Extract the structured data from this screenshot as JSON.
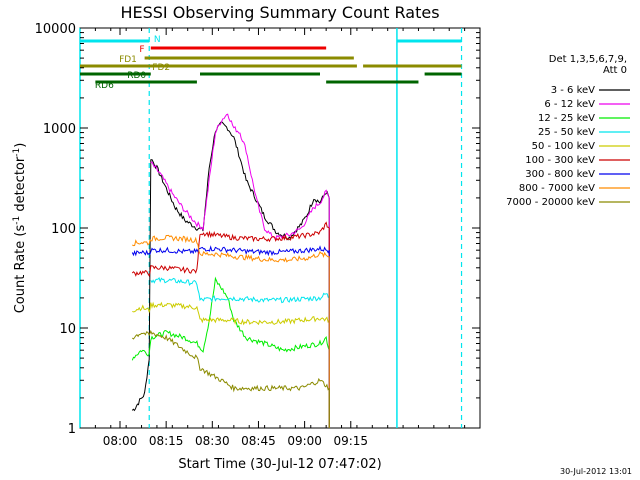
{
  "chart_data": {
    "type": "line",
    "title": "HESSI Observing Summary Count Rates",
    "xlabel": "Start Time (30-Jul-12 07:47:02)",
    "ylabel_main": "Count Rate (s",
    "ylabel_sup1": "-1",
    "ylabel_mid": " detector",
    "ylabel_sup2": "-1",
    "ylabel_end": ")",
    "y_scale": "log",
    "ylim": [
      1,
      10000
    ],
    "xlim_min": [
      0,
      130
    ],
    "x_ticks": [
      {
        "label": "08:00",
        "min": 13
      },
      {
        "label": "08:15",
        "min": 28
      },
      {
        "label": "08:30",
        "min": 43
      },
      {
        "label": "08:45",
        "min": 58
      },
      {
        "label": "09:00",
        "min": 73
      },
      {
        "label": "09:15",
        "min": 88
      }
    ],
    "y_ticks": [
      {
        "label": "10000",
        "value": 10000
      },
      {
        "label": "1000",
        "value": 1000
      },
      {
        "label": "100",
        "value": 100
      },
      {
        "label": "10",
        "value": 10
      },
      {
        "label": "1",
        "value": 1
      }
    ],
    "legend_header": [
      "Det 1,3,5,6,7,9,",
      "Att 0"
    ],
    "legend_position": "right",
    "timestamp": "30-Jul-2012 13:01",
    "vertical_markers": {
      "cyan_solid_min": [
        0,
        103
      ],
      "cyan_dashed_min": [
        22.5,
        124
      ]
    },
    "flag_bars": [
      {
        "label": "N",
        "color": "#00e5ee",
        "level": 0,
        "segments": [
          [
            0,
            22.5
          ],
          [
            103,
            124
          ]
        ]
      },
      {
        "label": "F",
        "color": "#ee0000",
        "level": 1,
        "segments": [
          [
            23,
            80
          ]
        ]
      },
      {
        "label": "FD1",
        "color": "#8b8b00",
        "level": 2,
        "segments": [
          [
            21,
            89
          ]
        ]
      },
      {
        "label": "FD2",
        "color": "#8b8b00",
        "level": 3,
        "segments": [
          [
            0,
            90
          ],
          [
            92,
            124
          ]
        ]
      },
      {
        "label": "RD0",
        "color": "#006400",
        "level": 4,
        "segments": [
          [
            0,
            23
          ],
          [
            39,
            78
          ],
          [
            112,
            124
          ]
        ]
      },
      {
        "label": "RD6",
        "color": "#006400",
        "level": 5,
        "segments": [
          [
            5,
            38
          ],
          [
            80,
            110
          ]
        ]
      }
    ],
    "series": [
      {
        "name": "3 - 6 keV",
        "color": "#000000",
        "x": [
          17,
          18,
          19,
          21,
          22.5,
          23,
          25,
          28,
          31,
          34,
          38,
          40,
          42,
          44,
          46,
          48,
          50,
          52,
          54,
          57,
          60,
          64,
          68,
          72,
          74,
          76,
          78,
          80,
          81
        ],
        "y": [
          1.5,
          1.6,
          1.8,
          2.2,
          5,
          500,
          400,
          250,
          160,
          120,
          100,
          95,
          400,
          950,
          1100,
          1000,
          800,
          500,
          300,
          200,
          130,
          90,
          80,
          110,
          140,
          200,
          180,
          230,
          200
        ]
      },
      {
        "name": "6 - 12 keV",
        "color": "#ee00ee",
        "x": [
          23,
          26,
          30,
          34,
          38,
          40,
          42,
          44,
          46,
          48,
          50,
          52,
          54,
          56,
          58,
          60,
          62,
          64,
          68,
          72,
          76,
          78,
          80,
          81
        ],
        "y": [
          450,
          350,
          220,
          150,
          110,
          100,
          300,
          900,
          1200,
          1400,
          1000,
          900,
          600,
          300,
          160,
          100,
          85,
          80,
          85,
          100,
          160,
          180,
          230,
          200
        ]
      },
      {
        "name": "12 - 25 keV",
        "color": "#00ee00",
        "x": [
          17,
          20,
          22.5,
          23,
          28,
          34,
          38,
          40,
          42,
          44,
          46,
          48,
          50,
          54,
          60,
          66,
          72,
          78,
          80,
          81
        ],
        "y": [
          5,
          6,
          5.5,
          8,
          9,
          8,
          7,
          6,
          12,
          30,
          25,
          20,
          12,
          8,
          7,
          6,
          6.5,
          7,
          8,
          6
        ]
      },
      {
        "name": "25 - 50 keV",
        "color": "#00e5ee",
        "x": [
          23,
          28,
          34,
          38,
          39,
          42,
          48,
          54,
          60,
          66,
          72,
          78,
          80,
          81
        ],
        "y": [
          30,
          30,
          29,
          28,
          19,
          19.5,
          20,
          19.5,
          19,
          19,
          19.5,
          20,
          22,
          20
        ]
      },
      {
        "name": "50 - 100 keV",
        "color": "#cccc00",
        "x": [
          17,
          20,
          22.5,
          23,
          28,
          34,
          38,
          39,
          42,
          48,
          54,
          60,
          66,
          72,
          78,
          81
        ],
        "y": [
          15,
          16,
          15,
          17,
          17,
          16.5,
          16,
          12,
          12,
          12,
          11.5,
          11.5,
          11.5,
          12,
          12.5,
          12
        ]
      },
      {
        "name": "100 - 300 keV",
        "color": "#cc0000",
        "x": [
          17,
          20,
          22.5,
          23,
          28,
          34,
          38,
          39,
          44,
          50,
          56,
          62,
          68,
          74,
          78,
          80,
          81
        ],
        "y": [
          35,
          36,
          35,
          40,
          40,
          38,
          37,
          90,
          85,
          80,
          78,
          78,
          80,
          85,
          90,
          110,
          100
        ]
      },
      {
        "name": "300 - 800 keV",
        "color": "#0000ee",
        "x": [
          17,
          20,
          22.5,
          23,
          28,
          34,
          38,
          39,
          44,
          50,
          56,
          62,
          68,
          74,
          78,
          81
        ],
        "y": [
          55,
          57,
          56,
          60,
          60,
          58,
          58,
          62,
          62,
          60,
          58,
          57,
          58,
          60,
          62,
          60
        ]
      },
      {
        "name": "800 - 7000 keV",
        "color": "#ff8c00",
        "x": [
          17,
          20,
          22.5,
          23,
          28,
          34,
          38,
          39,
          44,
          50,
          56,
          62,
          68,
          74,
          78,
          81
        ],
        "y": [
          70,
          72,
          71,
          78,
          80,
          78,
          75,
          55,
          55,
          52,
          50,
          48,
          48,
          50,
          55,
          52
        ]
      },
      {
        "name": "7000 - 20000 keV",
        "color": "#8b8b00",
        "x": [
          17,
          20,
          22.5,
          23,
          28,
          34,
          38,
          39,
          42,
          46,
          50,
          54,
          60,
          66,
          72,
          78,
          81
        ],
        "y": [
          8,
          9,
          8.5,
          9,
          8,
          6,
          5,
          4,
          3.5,
          3,
          2.5,
          2.5,
          2.5,
          2.5,
          2.5,
          3,
          2.5
        ]
      }
    ]
  }
}
